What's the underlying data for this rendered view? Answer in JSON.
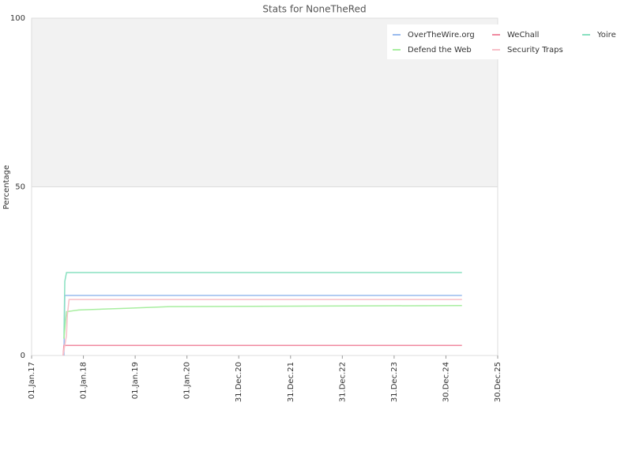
{
  "chart_data": {
    "type": "line",
    "title": "Stats for NoneTheRed",
    "y_label": "Percentage",
    "xlim": [
      "2017-01-01",
      "2025-12-30"
    ],
    "xticks": [
      {
        "value": "2017-01-01",
        "label": "01.Jan.17"
      },
      {
        "value": "2018-01-01",
        "label": "01.Jan.18"
      },
      {
        "value": "2019-01-01",
        "label": "01.Jan.19"
      },
      {
        "value": "2020-01-01",
        "label": "01.Jan.20"
      },
      {
        "value": "2020-12-31",
        "label": "31.Dec.20"
      },
      {
        "value": "2021-12-31",
        "label": "31.Dec.21"
      },
      {
        "value": "2022-12-31",
        "label": "31.Dec.22"
      },
      {
        "value": "2023-12-31",
        "label": "31.Dec.23"
      },
      {
        "value": "2024-12-30",
        "label": "30.Dec.24"
      },
      {
        "value": "2025-12-30",
        "label": "30.Dec.25"
      }
    ],
    "ylim": [
      0,
      100
    ],
    "yticks": [
      0,
      50,
      100
    ],
    "grid": true,
    "legend": "top-right",
    "series": [
      {
        "name": "OverTheWire.org",
        "color": "#99bbee",
        "x": [
          "2017-08-17",
          "2017-08-23",
          "2025-04-22"
        ],
        "values": [
          0,
          17.8,
          17.8
        ]
      },
      {
        "name": "WeChall",
        "color": "#f08aa0",
        "x": [
          "2017-08-11",
          "2017-08-17",
          "2025-04-22"
        ],
        "values": [
          0,
          3.0,
          3.0
        ]
      },
      {
        "name": "Yoire",
        "color": "#88e0c0",
        "x": [
          "2017-08-17",
          "2017-08-23",
          "2017-09-04",
          "2025-04-22"
        ],
        "values": [
          5,
          22,
          24.6,
          24.6
        ]
      },
      {
        "name": "Defend the Web",
        "color": "#a8eea0",
        "x": [
          "2017-08-17",
          "2017-09-04",
          "2017-11-30",
          "2018-10-30",
          "2019-09-01",
          "2025-04-22"
        ],
        "values": [
          5,
          13,
          13.5,
          14,
          14.5,
          14.8
        ]
      },
      {
        "name": "Security Traps",
        "color": "#f8c0c8",
        "x": [
          "2017-08-11",
          "2017-09-04",
          "2017-09-10",
          "2017-09-22",
          "2025-04-22"
        ],
        "values": [
          0,
          6,
          12,
          16.6,
          16.6
        ]
      }
    ]
  }
}
